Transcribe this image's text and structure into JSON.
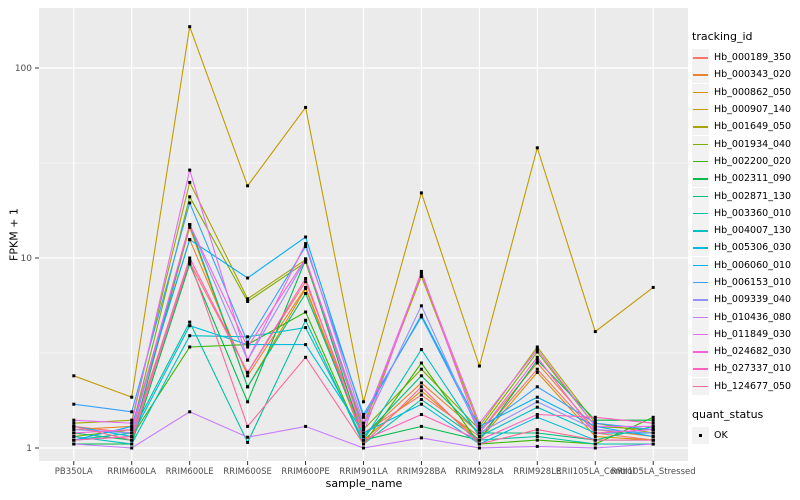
{
  "chart_data": {
    "type": "line",
    "title": "",
    "xlabel": "sample_name",
    "ylabel": "FPKM + 1",
    "y_scale": "log10",
    "y_ticks": [
      1,
      10,
      100
    ],
    "y_minor_ticks": [
      3.162,
      31.62
    ],
    "ylim": [
      1,
      200
    ],
    "grid": true,
    "legend_position": "right",
    "marker": "black-square",
    "categories": [
      "PB350LA",
      "RRIM600LA",
      "RRIM600LE",
      "RRIM600SE",
      "RRIM600PE",
      "RRIM901LA",
      "RRIM928BA",
      "RRIM928LA",
      "RRIM928LE",
      "RRII105LA_Control",
      "RRII105LA_Stressed"
    ],
    "series": [
      {
        "name": "Hb_000189_350",
        "color": "#F8766D",
        "values": [
          1.3,
          1.2,
          9.5,
          2.5,
          7.5,
          1.2,
          1.9,
          1.15,
          2.6,
          1.2,
          1.1
        ]
      },
      {
        "name": "Hb_000343_020",
        "color": "#EA8331",
        "values": [
          1.25,
          1.3,
          12.5,
          2.4,
          7.0,
          1.15,
          2.2,
          1.2,
          2.8,
          1.25,
          1.15
        ]
      },
      {
        "name": "Hb_000862_050",
        "color": "#D89000",
        "values": [
          1.2,
          1.1,
          14.5,
          2.1,
          6.9,
          1.1,
          2.0,
          1.1,
          2.5,
          1.15,
          1.1
        ]
      },
      {
        "name": "Hb_000907_140",
        "color": "#C09B00",
        "values": [
          2.4,
          1.85,
          165,
          24,
          62,
          1.75,
          22,
          2.7,
          38,
          4.1,
          7.0
        ]
      },
      {
        "name": "Hb_001649_050",
        "color": "#A3A500",
        "values": [
          1.35,
          1.4,
          25,
          6.1,
          9.8,
          1.3,
          8.0,
          1.3,
          3.4,
          1.35,
          1.2
        ]
      },
      {
        "name": "Hb_001934_040",
        "color": "#7CAE00",
        "values": [
          1.15,
          1.25,
          21,
          5.9,
          9.5,
          1.25,
          2.6,
          1.25,
          3.2,
          1.3,
          1.25
        ]
      },
      {
        "name": "Hb_002200_020",
        "color": "#39B600",
        "values": [
          1.1,
          1.15,
          3.4,
          3.5,
          5.2,
          1.05,
          2.8,
          1.05,
          1.1,
          1.05,
          1.45
        ]
      },
      {
        "name": "Hb_002311_090",
        "color": "#00BB4E",
        "values": [
          1.05,
          1.05,
          9.3,
          1.75,
          9.8,
          1.1,
          1.3,
          1.1,
          2.9,
          1.4,
          1.4
        ]
      },
      {
        "name": "Hb_002871_130",
        "color": "#00BF7D",
        "values": [
          1.2,
          1.1,
          15,
          2.1,
          6.5,
          1.15,
          2.4,
          1.2,
          1.2,
          1.1,
          1.3
        ]
      },
      {
        "name": "Hb_003360_010",
        "color": "#00C1A3",
        "values": [
          1.1,
          1.2,
          4.6,
          1.07,
          4.7,
          1.05,
          1.8,
          1.1,
          1.15,
          1.05,
          1.05
        ]
      },
      {
        "name": "Hb_004007_130",
        "color": "#00BFC4",
        "values": [
          1.15,
          1.05,
          3.9,
          3.85,
          4.3,
          1.1,
          3.3,
          1.15,
          1.64,
          1.2,
          1.2
        ]
      },
      {
        "name": "Hb_005306_030",
        "color": "#00BAE0",
        "values": [
          1.3,
          1.15,
          4.4,
          3.5,
          3.5,
          1.2,
          1.7,
          1.05,
          1.45,
          1.1,
          1.1
        ]
      },
      {
        "name": "Hb_006060_010",
        "color": "#00B0F6",
        "values": [
          1.1,
          1.3,
          12.5,
          7.85,
          12.9,
          1.45,
          5.0,
          1.3,
          1.85,
          1.3,
          1.15
        ]
      },
      {
        "name": "Hb_006153_010",
        "color": "#35A2FF",
        "values": [
          1.7,
          1.55,
          19.5,
          3.6,
          11.5,
          1.5,
          4.9,
          1.25,
          2.1,
          1.35,
          1.25
        ]
      },
      {
        "name": "Hb_009339_040",
        "color": "#9590FF",
        "values": [
          1.25,
          1.2,
          15,
          2.9,
          9.8,
          1.3,
          5.6,
          1.2,
          1.75,
          1.25,
          1.2
        ]
      },
      {
        "name": "Hb_010436_080",
        "color": "#C77CFF",
        "values": [
          1.05,
          1.0,
          1.55,
          1.14,
          1.3,
          1.0,
          1.13,
          1.0,
          1.02,
          1.0,
          1.05
        ]
      },
      {
        "name": "Hb_011849_030",
        "color": "#E76BF3",
        "values": [
          1.4,
          1.35,
          29,
          2.9,
          11.9,
          1.35,
          8.3,
          1.35,
          3.3,
          1.3,
          1.3
        ]
      },
      {
        "name": "Hb_024682_030",
        "color": "#FA62DB",
        "values": [
          1.2,
          1.25,
          15,
          3.4,
          9.9,
          1.2,
          8.5,
          1.2,
          3.0,
          1.2,
          1.25
        ]
      },
      {
        "name": "Hb_027337_010",
        "color": "#FF62BC",
        "values": [
          1.1,
          1.15,
          10,
          2.5,
          7.8,
          1.1,
          1.5,
          1.1,
          1.5,
          1.45,
          1.35
        ]
      },
      {
        "name": "Hb_124677_050",
        "color": "#FF6A98",
        "values": [
          1.3,
          1.1,
          9.7,
          1.3,
          3.0,
          1.05,
          2.1,
          1.05,
          1.25,
          1.1,
          1.1
        ]
      }
    ]
  },
  "legend": {
    "tracking_title": "tracking_id",
    "quant_title": "quant_status",
    "quant_items": [
      {
        "label": "OK"
      }
    ]
  },
  "theme": {
    "panel_bg": "#EBEBEB",
    "grid_major": "#FFFFFF",
    "grid_minor": "#FFFFFF",
    "axis_text": "#4D4D4D",
    "tick_color": "#333333",
    "point_color": "#000000",
    "key_bg": "#F2F2F2"
  }
}
